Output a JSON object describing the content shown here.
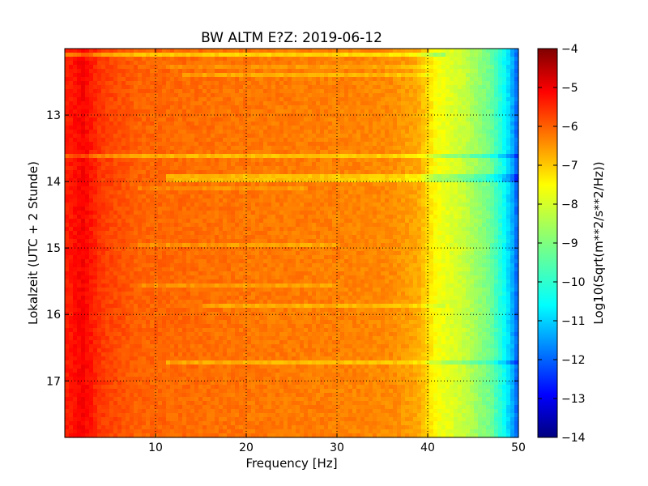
{
  "chart_data": {
    "type": "heatmap",
    "title": "BW ALTM E?Z: 2019-06-12",
    "xlabel": "Frequency [Hz]",
    "ylabel": "Lokalzeit (UTC + 2 Stunde)",
    "colorbar_label": "Log10(Sqrt(m**2/s**2/Hz))",
    "xlim": [
      0,
      50
    ],
    "ylim": [
      12.0,
      17.85
    ],
    "y_inverted": true,
    "x_ticks": [
      10,
      20,
      30,
      40,
      50
    ],
    "y_ticks": [
      13,
      14,
      15,
      16,
      17
    ],
    "color_range": [
      -14,
      -4
    ],
    "colorbar_ticks": [
      -4,
      -5,
      -6,
      -7,
      -8,
      -9,
      -10,
      -11,
      -12,
      -13,
      -14
    ],
    "colormap": "jet",
    "grid": "dotted",
    "spectrum_profile": [
      {
        "freq": 0.5,
        "value": -5.5
      },
      {
        "freq": 2,
        "value": -5.2
      },
      {
        "freq": 4,
        "value": -5.8
      },
      {
        "freq": 8,
        "value": -6.2
      },
      {
        "freq": 20,
        "value": -6.4
      },
      {
        "freq": 30,
        "value": -6.5
      },
      {
        "freq": 36,
        "value": -6.6
      },
      {
        "freq": 39,
        "value": -6.9
      },
      {
        "freq": 41,
        "value": -7.8
      },
      {
        "freq": 44,
        "value": -8.3
      },
      {
        "freq": 47,
        "value": -9.2
      },
      {
        "freq": 48.5,
        "value": -10.2
      },
      {
        "freq": 49.5,
        "value": -11.2
      },
      {
        "freq": 50,
        "value": -12.0
      }
    ],
    "highlighted_bands": [
      {
        "time": 12.08,
        "freq_range": [
          0,
          42
        ],
        "delta": -0.9
      },
      {
        "time": 12.25,
        "freq_range": [
          11,
          40
        ],
        "delta": -0.3
      },
      {
        "time": 12.42,
        "freq_range": [
          13,
          40
        ],
        "delta": -0.5
      },
      {
        "time": 13.6,
        "freq_range": [
          0,
          50
        ],
        "delta": -0.7
      },
      {
        "time": 13.95,
        "freq_range": [
          11,
          50
        ],
        "delta": -0.7
      },
      {
        "time": 14.12,
        "freq_range": [
          8,
          27
        ],
        "delta": -0.3
      },
      {
        "time": 14.95,
        "freq_range": [
          8,
          30
        ],
        "delta": -0.4
      },
      {
        "time": 15.55,
        "freq_range": [
          8,
          30
        ],
        "delta": -0.4
      },
      {
        "time": 15.85,
        "freq_range": [
          15,
          42
        ],
        "delta": -0.5
      },
      {
        "time": 16.72,
        "freq_range": [
          11,
          50
        ],
        "delta": -0.6
      }
    ]
  }
}
